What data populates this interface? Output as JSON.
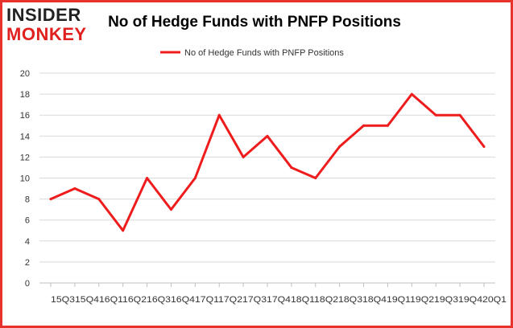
{
  "brand": {
    "logo_line1": "INSIDER",
    "logo_line2": "MONKEY",
    "logo_color_dark": "#222222",
    "logo_color_red": "#e0201f"
  },
  "colors": {
    "series": "#ee1c1c",
    "grid": "#d9d9d9",
    "border": "#e8332c",
    "axis": "#bfbfbf"
  },
  "chart_data": {
    "type": "line",
    "title": "No of Hedge Funds with PNFP Positions",
    "xlabel": "",
    "ylabel": "",
    "legend_position": "top-center",
    "grid": true,
    "ylim": [
      0,
      20
    ],
    "yticks": [
      0,
      2,
      4,
      6,
      8,
      10,
      12,
      14,
      16,
      18,
      20
    ],
    "categories": [
      "2015Q3",
      "2015Q4",
      "2016Q1",
      "2016Q2",
      "2016Q3",
      "2016Q4",
      "2017Q1",
      "2017Q2",
      "2017Q3",
      "2017Q4",
      "2018Q1",
      "2018Q2",
      "2018Q3",
      "2018Q4",
      "2019Q1",
      "2019Q2",
      "2019Q3",
      "2019Q4",
      "2020Q1"
    ],
    "x_tick_row": "15Q315Q416Q116Q216Q316Q417Q117Q217Q317Q418Q118Q218Q318Q419Q119Q219Q319Q420Q1",
    "series": [
      {
        "name": "No of Hedge Funds with PNFP Positions",
        "values": [
          8,
          9,
          8,
          5,
          10,
          7,
          10,
          16,
          12,
          14,
          11,
          10,
          13,
          15,
          15,
          18,
          16,
          16,
          13
        ]
      }
    ]
  }
}
